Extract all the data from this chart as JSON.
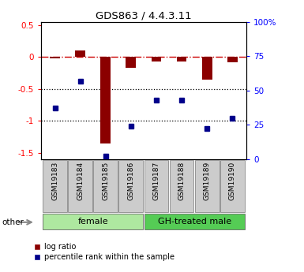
{
  "title": "GDS863 / 4.4.3.11",
  "samples": [
    "GSM19183",
    "GSM19184",
    "GSM19185",
    "GSM19186",
    "GSM19187",
    "GSM19188",
    "GSM19189",
    "GSM19190"
  ],
  "log_ratio": [
    -0.02,
    0.1,
    -1.35,
    -0.17,
    -0.07,
    -0.07,
    -0.35,
    -0.08
  ],
  "percentile_rank": [
    37,
    57,
    2,
    24,
    43,
    43,
    22,
    30
  ],
  "female_indices": [
    0,
    1,
    2,
    3
  ],
  "male_indices": [
    4,
    5,
    6,
    7
  ],
  "female_label": "female",
  "male_label": "GH-treated male",
  "female_color": "#aee8a0",
  "male_color": "#55cc55",
  "sample_box_color": "#cccccc",
  "ylim_left": [
    -1.6,
    0.55
  ],
  "ylim_right": [
    0,
    100
  ],
  "yticks_left": [
    0.5,
    0,
    -0.5,
    -1.0,
    -1.5
  ],
  "yticks_right": [
    100,
    75,
    50,
    25,
    0
  ],
  "bar_color": "#8B0000",
  "dot_color": "#00008B",
  "hline_color": "#cc0000",
  "dotted_line_color": "#000000",
  "bg_color": "#ffffff",
  "other_text": "other",
  "legend_log_ratio": "log ratio",
  "legend_percentile": "percentile rank within the sample"
}
